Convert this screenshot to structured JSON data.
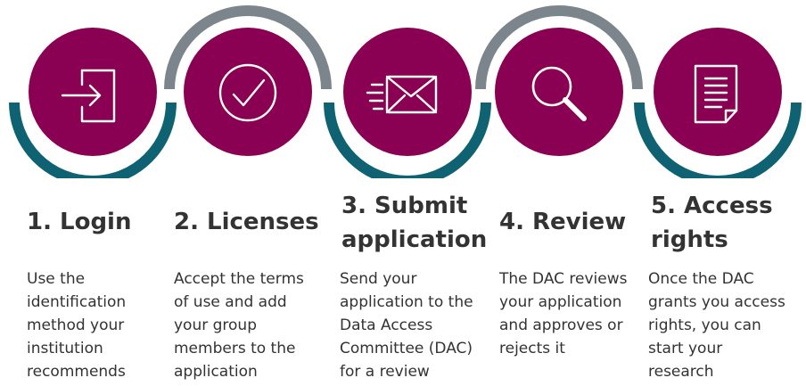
{
  "colors": {
    "circle": "#8a0052",
    "icon_stroke": "#ffffff",
    "arc_teal": "#0e6271",
    "arc_gray": "#7d858c",
    "text": "#333333"
  },
  "steps": [
    {
      "icon": "login-icon",
      "arc": "bottom",
      "title": "1. Login",
      "description": [
        "Use the",
        "identification",
        "method your",
        "institution",
        "recommends"
      ]
    },
    {
      "icon": "checkmark-circle-icon",
      "arc": "top",
      "title": "2. Licenses",
      "description": [
        "Accept the terms",
        "of use and add",
        "your group",
        "members to the",
        "application"
      ]
    },
    {
      "icon": "envelope-icon",
      "arc": "bottom",
      "title": "3. Submit application",
      "description": [
        "Send your",
        "application to the",
        "Data Access",
        "Committee (DAC)",
        "for a review"
      ]
    },
    {
      "icon": "magnifier-icon",
      "arc": "top",
      "title": "4. Review",
      "description": [
        "The DAC reviews",
        "your application",
        "and approves or",
        "rejects it"
      ]
    },
    {
      "icon": "document-icon",
      "arc": "bottom",
      "title": "5. Access rights",
      "description": [
        "Once the DAC",
        "grants you access",
        "rights, you can",
        "start your",
        "research"
      ]
    }
  ]
}
